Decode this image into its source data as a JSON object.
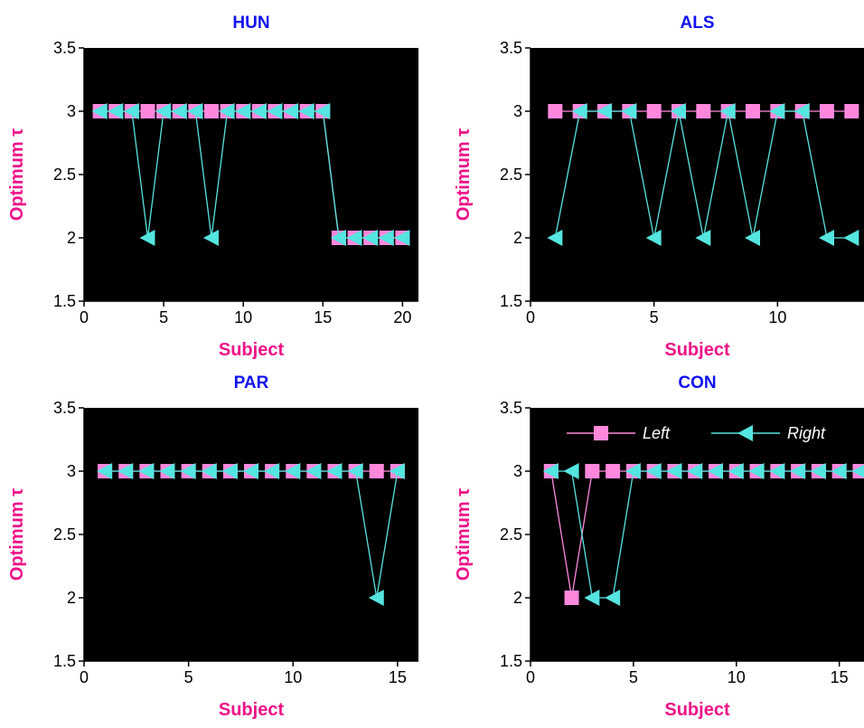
{
  "colors": {
    "background": "#000000",
    "left": "#ff88dd",
    "right": "#55e5e0",
    "title": "#1111ee",
    "label": "#ee1188",
    "axis": "#000000"
  },
  "chart_data": [
    {
      "type": "line",
      "title": "HUN",
      "xlabel": "Subject",
      "ylabel": "Optimum τ",
      "xlim": [
        0,
        21
      ],
      "ylim": [
        1.5,
        3.5
      ],
      "xticks": [
        0,
        5,
        10,
        15,
        20
      ],
      "yticks": [
        "1.5",
        "2",
        "2.5",
        "3",
        "3.5"
      ],
      "x": [
        1,
        2,
        3,
        4,
        5,
        6,
        7,
        8,
        9,
        10,
        11,
        12,
        13,
        14,
        15,
        16,
        17,
        18,
        19,
        20
      ],
      "series": [
        {
          "name": "Left",
          "marker": "square",
          "values": [
            3,
            3,
            3,
            3,
            3,
            3,
            3,
            3,
            3,
            3,
            3,
            3,
            3,
            3,
            3,
            2,
            2,
            2,
            2,
            2
          ]
        },
        {
          "name": "Right",
          "marker": "triangle-left",
          "values": [
            3,
            3,
            3,
            2,
            3,
            3,
            3,
            2,
            3,
            3,
            3,
            3,
            3,
            3,
            3,
            2,
            2,
            2,
            2,
            2
          ]
        }
      ]
    },
    {
      "type": "line",
      "title": "ALS",
      "xlabel": "Subject",
      "ylabel": "Optimum τ",
      "xlim": [
        0,
        13.5
      ],
      "ylim": [
        1.5,
        3.5
      ],
      "xticks": [
        0,
        5,
        10
      ],
      "yticks": [
        "1.5",
        "2",
        "2.5",
        "3",
        "3.5"
      ],
      "x": [
        1,
        2,
        3,
        4,
        5,
        6,
        7,
        8,
        9,
        10,
        11,
        12,
        13
      ],
      "series": [
        {
          "name": "Left",
          "marker": "square",
          "values": [
            3,
            3,
            3,
            3,
            3,
            3,
            3,
            3,
            3,
            3,
            3,
            3,
            3
          ]
        },
        {
          "name": "Right",
          "marker": "triangle-left",
          "values": [
            2,
            3,
            3,
            3,
            2,
            3,
            2,
            3,
            2,
            3,
            3,
            2,
            2
          ]
        }
      ]
    },
    {
      "type": "line",
      "title": "PAR",
      "xlabel": "Subject",
      "ylabel": "Optimum τ",
      "xlim": [
        0,
        16
      ],
      "ylim": [
        1.5,
        3.5
      ],
      "xticks": [
        0,
        5,
        10,
        15
      ],
      "yticks": [
        "1.5",
        "2",
        "2.5",
        "3",
        "3.5"
      ],
      "x": [
        1,
        2,
        3,
        4,
        5,
        6,
        7,
        8,
        9,
        10,
        11,
        12,
        13,
        14,
        15
      ],
      "series": [
        {
          "name": "Left",
          "marker": "square",
          "values": [
            3,
            3,
            3,
            3,
            3,
            3,
            3,
            3,
            3,
            3,
            3,
            3,
            3,
            3,
            3
          ]
        },
        {
          "name": "Right",
          "marker": "triangle-left",
          "values": [
            3,
            3,
            3,
            3,
            3,
            3,
            3,
            3,
            3,
            3,
            3,
            3,
            3,
            2,
            3
          ]
        }
      ]
    },
    {
      "type": "line",
      "title": "CON",
      "xlabel": "Subject",
      "ylabel": "Optimum τ",
      "xlim": [
        0,
        16.2
      ],
      "ylim": [
        1.5,
        3.5
      ],
      "xticks": [
        0,
        5,
        10,
        15
      ],
      "yticks": [
        "1.5",
        "2",
        "2.5",
        "3",
        "3.5"
      ],
      "legend": "top",
      "x": [
        1,
        2,
        3,
        4,
        5,
        6,
        7,
        8,
        9,
        10,
        11,
        12,
        13,
        14,
        15,
        16
      ],
      "series": [
        {
          "name": "Left",
          "marker": "square",
          "values": [
            3,
            2,
            3,
            3,
            3,
            3,
            3,
            3,
            3,
            3,
            3,
            3,
            3,
            3,
            3,
            3
          ]
        },
        {
          "name": "Right",
          "marker": "triangle-left",
          "values": [
            3,
            3,
            2,
            2,
            3,
            3,
            3,
            3,
            3,
            3,
            3,
            3,
            3,
            3,
            3,
            3
          ]
        }
      ]
    }
  ]
}
